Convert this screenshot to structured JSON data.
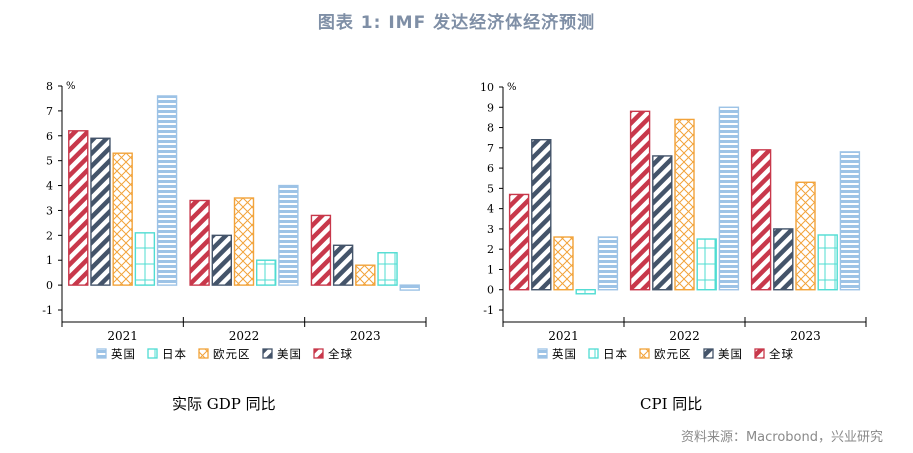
{
  "title": "图表 1:  IMF 发达经济体经济预测",
  "source": "资料来源：Macrobond，兴业研究",
  "legend_order": [
    "英国",
    "日本",
    "欧元区",
    "美国",
    "全球"
  ],
  "colors": {
    "全球": "#c8384b",
    "美国": "#44546a",
    "欧元区": "#f2a33a",
    "日本": "#4fdcd2",
    "英国": "#9dc3e6"
  },
  "patterns": {
    "全球": "diagonal",
    "美国": "diagonal",
    "欧元区": "crosshatch",
    "日本": "grid",
    "英国": "horizontal"
  },
  "chart_data": [
    {
      "type": "bar",
      "subtitle": "实际 GDP 同比",
      "unit": "%",
      "categories": [
        "2021",
        "2022",
        "2023"
      ],
      "ylim": [
        -1,
        8
      ],
      "yticks": [
        -1,
        0,
        1,
        2,
        3,
        4,
        5,
        6,
        7,
        8
      ],
      "series": [
        {
          "name": "全球",
          "values": [
            6.2,
            3.4,
            2.8
          ]
        },
        {
          "name": "美国",
          "values": [
            5.9,
            2.0,
            1.6
          ]
        },
        {
          "name": "欧元区",
          "values": [
            5.3,
            3.5,
            0.8
          ]
        },
        {
          "name": "日本",
          "values": [
            2.1,
            1.0,
            1.3
          ]
        },
        {
          "name": "英国",
          "values": [
            7.6,
            4.0,
            -0.2
          ]
        }
      ]
    },
    {
      "type": "bar",
      "subtitle": "CPI 同比",
      "unit": "%",
      "categories": [
        "2021",
        "2022",
        "2023"
      ],
      "ylim": [
        -1,
        10
      ],
      "yticks": [
        -1,
        0,
        1,
        2,
        3,
        4,
        5,
        6,
        7,
        8,
        9,
        10
      ],
      "series": [
        {
          "name": "全球",
          "values": [
            4.7,
            8.8,
            6.9
          ]
        },
        {
          "name": "美国",
          "values": [
            7.4,
            6.6,
            3.0
          ]
        },
        {
          "name": "欧元区",
          "values": [
            2.6,
            8.4,
            5.3
          ]
        },
        {
          "name": "日本",
          "values": [
            -0.2,
            2.5,
            2.7
          ]
        },
        {
          "name": "英国",
          "values": [
            2.6,
            9.0,
            6.8
          ]
        }
      ]
    }
  ]
}
